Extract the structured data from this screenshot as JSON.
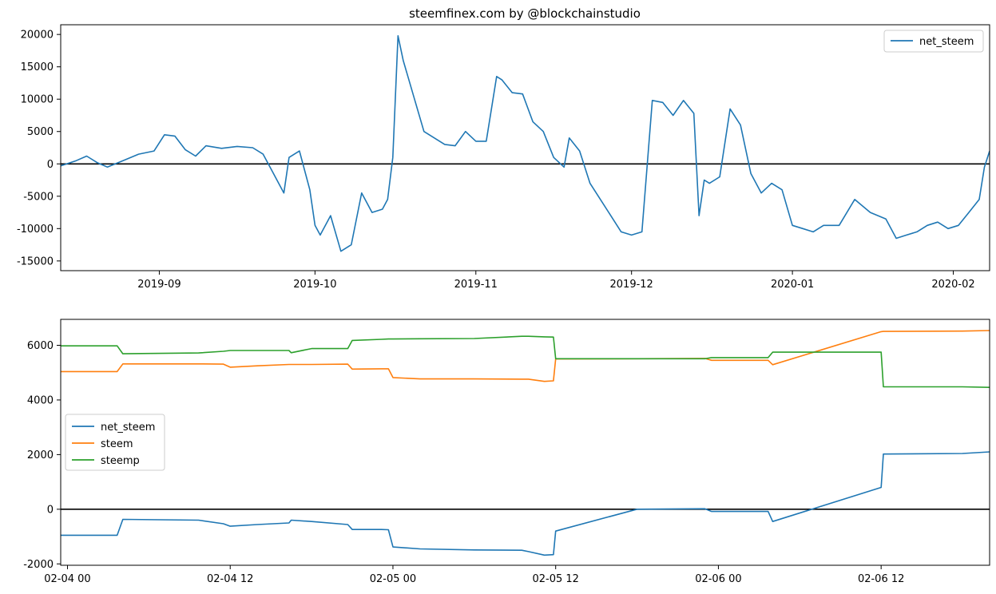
{
  "colors": {
    "net_steem": "#1f77b4",
    "steem": "#ff7f0e",
    "steemp": "#2ca02c",
    "zero_line": "#000000"
  },
  "chart_data": [
    {
      "type": "line",
      "title": "steemfinex.com by @blockchainstudio",
      "xlabel": "",
      "ylabel": "",
      "x_unit": "date",
      "xlim": [
        "2019-08-13",
        "2020-02-08"
      ],
      "ylim": [
        -16500,
        21500
      ],
      "x_ticks": [
        "2019-09",
        "2019-10",
        "2019-11",
        "2019-12",
        "2020-01",
        "2020-02"
      ],
      "y_ticks": [
        -15000,
        -10000,
        -5000,
        0,
        5000,
        10000,
        15000,
        20000
      ],
      "hline": 0,
      "grid": false,
      "legend": "top-right",
      "series": [
        {
          "name": "net_steem",
          "color_key": "net_steem",
          "x": [
            "2019-08-13",
            "2019-08-16",
            "2019-08-18",
            "2019-08-20",
            "2019-08-22",
            "2019-08-25",
            "2019-08-28",
            "2019-08-31",
            "2019-09-02",
            "2019-09-04",
            "2019-09-06",
            "2019-09-08",
            "2019-09-10",
            "2019-09-13",
            "2019-09-16",
            "2019-09-19",
            "2019-09-21",
            "2019-09-23",
            "2019-09-25",
            "2019-09-26",
            "2019-09-28",
            "2019-09-30",
            "2019-10-01",
            "2019-10-02",
            "2019-10-04",
            "2019-10-06",
            "2019-10-08",
            "2019-10-10",
            "2019-10-12",
            "2019-10-14",
            "2019-10-15",
            "2019-10-16",
            "2019-10-17",
            "2019-10-18",
            "2019-10-20",
            "2019-10-22",
            "2019-10-24",
            "2019-10-26",
            "2019-10-28",
            "2019-10-30",
            "2019-11-01",
            "2019-11-03",
            "2019-11-05",
            "2019-11-06",
            "2019-11-08",
            "2019-11-10",
            "2019-11-12",
            "2019-11-14",
            "2019-11-16",
            "2019-11-18",
            "2019-11-19",
            "2019-11-21",
            "2019-11-23",
            "2019-11-25",
            "2019-11-27",
            "2019-11-29",
            "2019-12-01",
            "2019-12-03",
            "2019-12-05",
            "2019-12-07",
            "2019-12-09",
            "2019-12-11",
            "2019-12-13",
            "2019-12-14",
            "2019-12-15",
            "2019-12-16",
            "2019-12-18",
            "2019-12-20",
            "2019-12-22",
            "2019-12-24",
            "2019-12-26",
            "2019-12-28",
            "2019-12-30",
            "2020-01-01",
            "2020-01-03",
            "2020-01-05",
            "2020-01-07",
            "2020-01-10",
            "2020-01-13",
            "2020-01-16",
            "2020-01-19",
            "2020-01-21",
            "2020-01-23",
            "2020-01-25",
            "2020-01-27",
            "2020-01-29",
            "2020-01-31",
            "2020-02-02",
            "2020-02-04",
            "2020-02-06",
            "2020-02-07",
            "2020-02-08"
          ],
          "y": [
            -300,
            500,
            1200,
            200,
            -500,
            500,
            1500,
            2000,
            4500,
            4300,
            2200,
            1200,
            2800,
            2400,
            2700,
            2500,
            1500,
            -1500,
            -4500,
            1000,
            2000,
            -4000,
            -9500,
            -11000,
            -8000,
            -13500,
            -12500,
            -4500,
            -7500,
            -7000,
            -5500,
            1000,
            19800,
            16000,
            10500,
            5000,
            4000,
            3000,
            2800,
            5000,
            3500,
            3500,
            13500,
            13000,
            11000,
            10800,
            6500,
            5000,
            1000,
            -500,
            4000,
            2000,
            -3000,
            -5500,
            -8000,
            -10500,
            -11000,
            -10500,
            9800,
            9500,
            7500,
            9800,
            7800,
            -8000,
            -2500,
            -3000,
            -2000,
            8500,
            6000,
            -1500,
            -4500,
            -3000,
            -4000,
            -9500,
            -10000,
            -10500,
            -9500,
            -9500,
            -5500,
            -7500,
            -8500,
            -11500,
            -11000,
            -10500,
            -9500,
            -9000,
            -10000,
            -9500,
            -7500,
            -5500,
            -500,
            2000
          ]
        }
      ]
    },
    {
      "type": "line",
      "title": "",
      "xlabel": "",
      "ylabel": "",
      "x_unit": "datetime",
      "xlim": [
        "2020-02-03 23:30",
        "2020-02-06 20:00"
      ],
      "ylim": [
        -2050,
        6950
      ],
      "x_ticks": [
        "02-04 00",
        "02-04 12",
        "02-05 00",
        "02-05 12",
        "02-06 00",
        "02-06 12"
      ],
      "x_tick_values": [
        "2020-02-04 00:00",
        "2020-02-04 12:00",
        "2020-02-05 00:00",
        "2020-02-05 12:00",
        "2020-02-06 00:00",
        "2020-02-06 12:00"
      ],
      "y_ticks": [
        -2000,
        0,
        2000,
        4000,
        6000
      ],
      "hline": 0,
      "grid": false,
      "legend": "center-left",
      "series": [
        {
          "name": "net_steem",
          "color_key": "net_steem",
          "x": [
            "2020-02-03 23:30",
            "2020-02-04 03:40",
            "2020-02-04 04:05",
            "2020-02-04 09:40",
            "2020-02-04 11:30",
            "2020-02-04 12:00",
            "2020-02-04 14:00",
            "2020-02-04 16:20",
            "2020-02-04 16:30",
            "2020-02-04 18:00",
            "2020-02-04 20:40",
            "2020-02-04 21:00",
            "2020-02-04 23:10",
            "2020-02-04 23:40",
            "2020-02-05 00:00",
            "2020-02-05 02:00",
            "2020-02-05 06:00",
            "2020-02-05 09:30",
            "2020-02-05 10:00",
            "2020-02-05 11:10",
            "2020-02-05 11:50",
            "2020-02-05 12:00",
            "2020-02-05 18:00",
            "2020-02-05 23:00",
            "2020-02-05 23:30",
            "2020-02-06 03:40",
            "2020-02-06 04:00",
            "2020-02-06 12:00",
            "2020-02-06 12:10",
            "2020-02-06 18:00",
            "2020-02-06 20:00"
          ],
          "y": [
            -950,
            -950,
            -370,
            -400,
            -530,
            -620,
            -560,
            -500,
            -400,
            -450,
            -560,
            -740,
            -740,
            -750,
            -1380,
            -1450,
            -1490,
            -1500,
            -1550,
            -1680,
            -1660,
            -800,
            0,
            20,
            -80,
            -80,
            -450,
            800,
            2020,
            2040,
            2100
          ]
        },
        {
          "name": "steem",
          "color_key": "steem",
          "x": [
            "2020-02-03 23:30",
            "2020-02-04 03:40",
            "2020-02-04 04:05",
            "2020-02-04 09:40",
            "2020-02-04 11:30",
            "2020-02-04 12:00",
            "2020-02-04 14:00",
            "2020-02-04 16:20",
            "2020-02-04 16:30",
            "2020-02-04 18:00",
            "2020-02-04 20:40",
            "2020-02-04 21:00",
            "2020-02-04 23:10",
            "2020-02-04 23:40",
            "2020-02-05 00:00",
            "2020-02-05 02:00",
            "2020-02-05 06:00",
            "2020-02-05 09:30",
            "2020-02-05 10:00",
            "2020-02-05 11:10",
            "2020-02-05 11:50",
            "2020-02-05 12:00",
            "2020-02-05 18:00",
            "2020-02-05 23:00",
            "2020-02-05 23:30",
            "2020-02-06 03:40",
            "2020-02-06 04:00",
            "2020-02-06 12:00",
            "2020-02-06 12:10",
            "2020-02-06 18:00",
            "2020-02-06 20:00"
          ],
          "y": [
            5040,
            5040,
            5320,
            5320,
            5310,
            5200,
            5250,
            5300,
            5300,
            5300,
            5310,
            5130,
            5140,
            5140,
            4820,
            4770,
            4770,
            4760,
            4760,
            4680,
            4700,
            5500,
            5510,
            5520,
            5450,
            5450,
            5290,
            6500,
            6510,
            6520,
            6540
          ]
        },
        {
          "name": "steemp",
          "color_key": "steemp",
          "x": [
            "2020-02-03 23:30",
            "2020-02-04 03:40",
            "2020-02-04 04:05",
            "2020-02-04 09:40",
            "2020-02-04 11:30",
            "2020-02-04 12:00",
            "2020-02-04 14:00",
            "2020-02-04 16:20",
            "2020-02-04 16:30",
            "2020-02-04 18:00",
            "2020-02-04 20:40",
            "2020-02-04 21:00",
            "2020-02-04 23:10",
            "2020-02-04 23:40",
            "2020-02-05 00:00",
            "2020-02-05 02:00",
            "2020-02-05 06:00",
            "2020-02-05 09:30",
            "2020-02-05 10:00",
            "2020-02-05 11:10",
            "2020-02-05 11:50",
            "2020-02-05 12:00",
            "2020-02-05 18:00",
            "2020-02-05 23:00",
            "2020-02-05 23:30",
            "2020-02-06 03:40",
            "2020-02-06 04:00",
            "2020-02-06 12:00",
            "2020-02-06 12:10",
            "2020-02-06 18:00",
            "2020-02-06 20:00"
          ],
          "y": [
            5980,
            5980,
            5690,
            5720,
            5780,
            5810,
            5810,
            5810,
            5730,
            5880,
            5880,
            6180,
            6220,
            6230,
            6230,
            6240,
            6250,
            6330,
            6330,
            6310,
            6300,
            5510,
            5510,
            5510,
            5550,
            5550,
            5750,
            5750,
            4480,
            4480,
            4460
          ]
        }
      ]
    }
  ]
}
